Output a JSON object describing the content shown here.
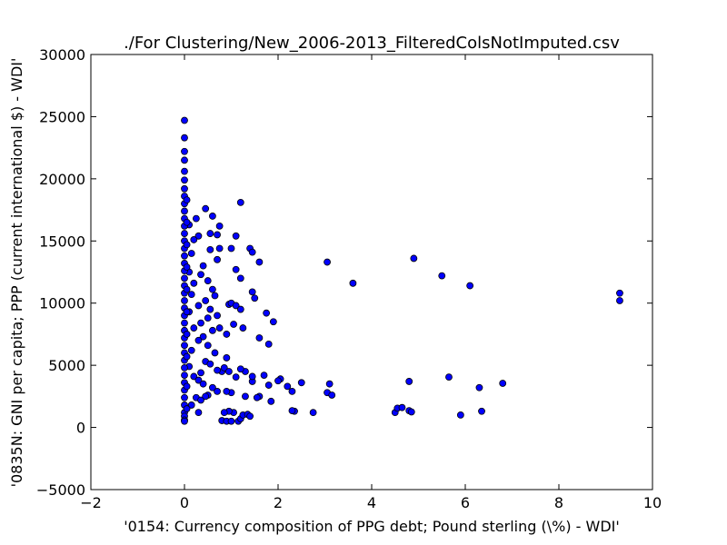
{
  "chart_data": {
    "type": "scatter",
    "title": "./For Clustering/New_2006-2013_FilteredColsNotImputed.csv",
    "xlabel": "'0154: Currency composition of PPG debt; Pound sterling  (\\%) - WDI'",
    "ylabel": "'0835N: GNI per capita; PPP  (current international $) - WDI'",
    "color": "#0000ff",
    "xlim": [
      -2,
      10
    ],
    "xticks": [
      {
        "value": -2,
        "label": "−2"
      },
      0,
      2,
      4,
      6,
      8,
      10
    ],
    "ylim": [
      -5000,
      30000
    ],
    "yticks": [
      {
        "value": -5000,
        "label": "−5000"
      },
      0,
      5000,
      10000,
      15000,
      20000,
      25000,
      30000
    ],
    "x": [
      3.05,
      3.6,
      4.9,
      5.5,
      6.1,
      9.3,
      9.3,
      4.8,
      5.65,
      6.3,
      6.8,
      4.5,
      4.55,
      4.65,
      4.8,
      4.85,
      5.9,
      6.35,
      2.75,
      2.35,
      2.3,
      3.05,
      3.1,
      3.15,
      2.5,
      2.3,
      2.2,
      2.05,
      2.0,
      1.85,
      1.8,
      1.7,
      1.6,
      1.55,
      1.45,
      1.45,
      1.3,
      1.3,
      1.2,
      1.1,
      1.0,
      0.9,
      1.15,
      1.2,
      1.25,
      1.35,
      1.4,
      1.05,
      0.95,
      0.85,
      0.8,
      0.9,
      1.0,
      0.75,
      0.8,
      0.85,
      0.9,
      0.95,
      1.0,
      1.1,
      1.2,
      1.2,
      1.1,
      1.0,
      1.1,
      1.2,
      1.4,
      1.45,
      1.6,
      1.45,
      1.5,
      1.75,
      1.9,
      1.8,
      1.6,
      1.25,
      1.05,
      0.9,
      0.95,
      0.7,
      0.75,
      0.7,
      0.75,
      0.6,
      0.45,
      0.25,
      0.3,
      0.55,
      0.55,
      0.4,
      0.35,
      0.5,
      0.6,
      0.65,
      0.45,
      0.3,
      0.55,
      0.7,
      0.5,
      0.35,
      0.6,
      0.4,
      0.3,
      0.5,
      0.65,
      0.45,
      0.55,
      0.7,
      0.35,
      0.2,
      0.3,
      0.4,
      0.6,
      0.7,
      0.5,
      0.25,
      0.35,
      0.45,
      0.15,
      0.3,
      0.1,
      0.15,
      0.2,
      0.1,
      0.15,
      0.2,
      0.1,
      0.15,
      0.2,
      0.1,
      0,
      0,
      0,
      0,
      0,
      0,
      0,
      0,
      0,
      0,
      0,
      0,
      0,
      0,
      0,
      0,
      0,
      0,
      0,
      0,
      0,
      0,
      0,
      0,
      0,
      0,
      0,
      0,
      0,
      0,
      0,
      0,
      0,
      0,
      0,
      0,
      0,
      0,
      0,
      0,
      0.05,
      0.05,
      0.05,
      0.05,
      0.05,
      0.05,
      0.05,
      0.05,
      0.05,
      0.05
    ],
    "values": [
      13300,
      11600,
      13600,
      12200,
      11400,
      10800,
      10200,
      3700,
      4050,
      3200,
      3550,
      1200,
      1550,
      1600,
      1350,
      1250,
      1000,
      1300,
      1200,
      1300,
      1350,
      2800,
      3500,
      2600,
      3600,
      2900,
      3300,
      3900,
      3750,
      2100,
      3400,
      4200,
      2500,
      2400,
      3700,
      4100,
      4500,
      2500,
      4700,
      4050,
      2800,
      2900,
      500,
      700,
      1000,
      1050,
      900,
      1200,
      1300,
      1200,
      550,
      500,
      500,
      8000,
      4500,
      4800,
      7500,
      9900,
      10000,
      9800,
      9500,
      12000,
      12700,
      14400,
      15400,
      18100,
      14400,
      14100,
      13300,
      10900,
      10400,
      9200,
      8500,
      6700,
      7200,
      8000,
      8300,
      5600,
      4500,
      13500,
      14400,
      15500,
      16200,
      17000,
      17600,
      16800,
      15400,
      15600,
      14300,
      13000,
      12300,
      11800,
      11100,
      10600,
      10200,
      9800,
      9500,
      9000,
      8800,
      8400,
      7800,
      7300,
      7000,
      6600,
      6000,
      5300,
      5100,
      4600,
      4400,
      4100,
      3800,
      3500,
      3200,
      2900,
      2600,
      2400,
      2200,
      2500,
      1800,
      1200,
      4900,
      6200,
      8000,
      9300,
      10700,
      11600,
      12500,
      14000,
      15100,
      16300,
      24700,
      23300,
      22200,
      21500,
      20600,
      19900,
      19200,
      18600,
      18000,
      17400,
      16800,
      16200,
      15600,
      15000,
      14400,
      13800,
      13200,
      12600,
      12000,
      11400,
      10800,
      10200,
      9600,
      9000,
      8400,
      7800,
      7200,
      6600,
      6000,
      5400,
      4800,
      4200,
      3600,
      3000,
      2400,
      1800,
      1200,
      900,
      600,
      500,
      1500,
      3300,
      5700,
      7500,
      9300,
      11100,
      12900,
      14700,
      16500,
      18300
    ]
  }
}
